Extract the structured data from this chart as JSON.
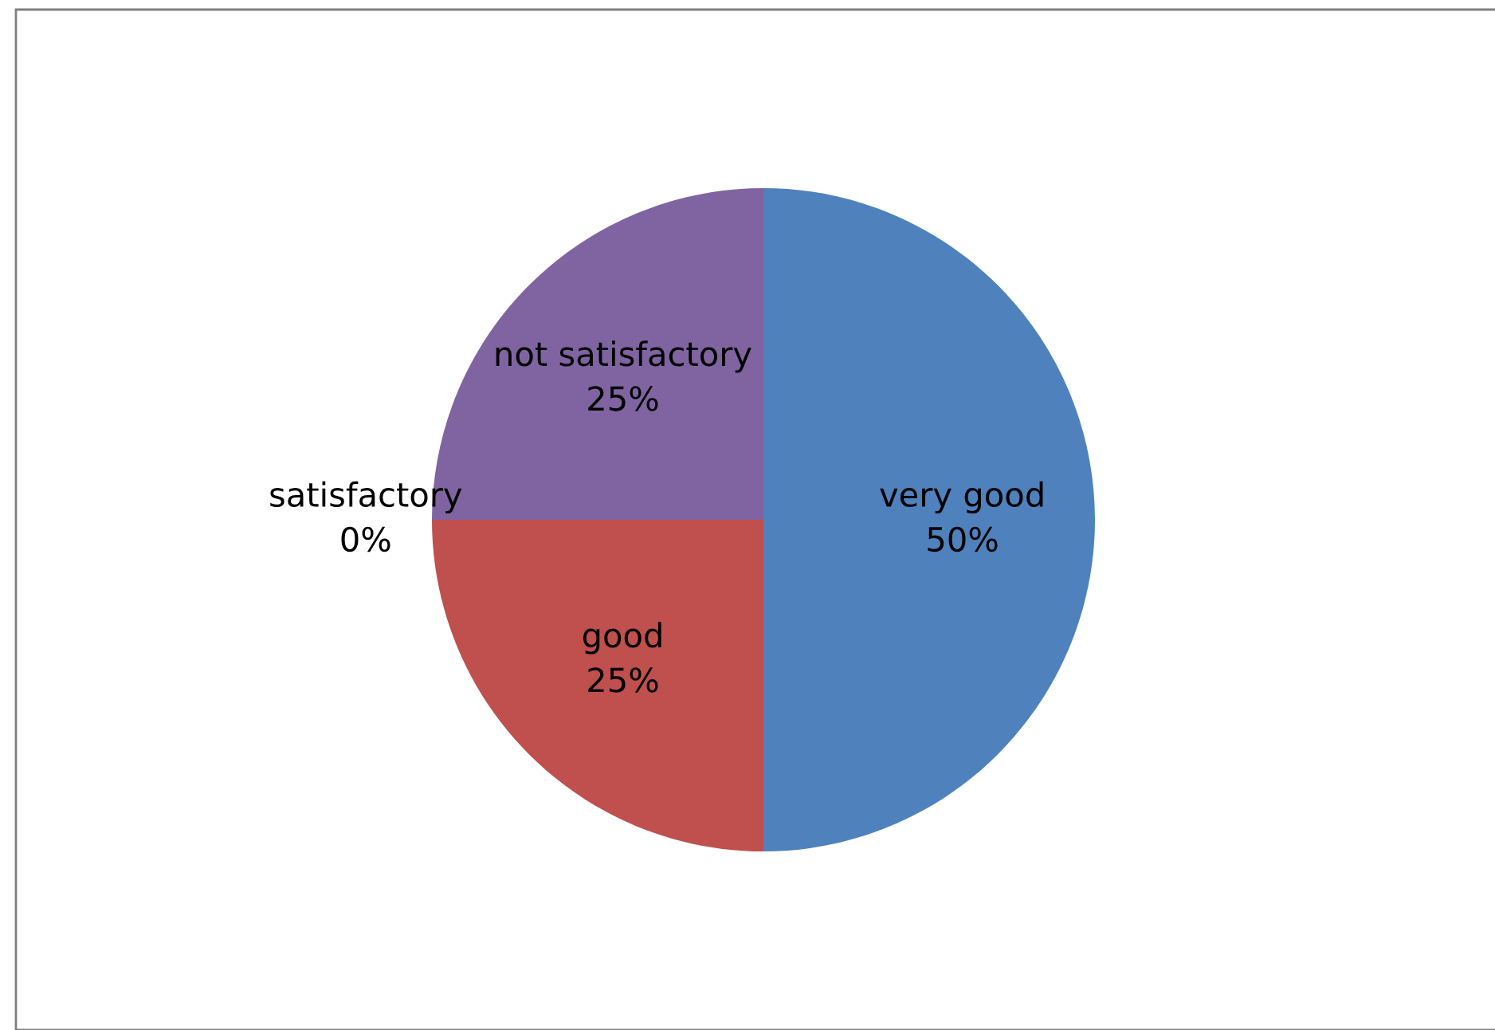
{
  "chart_data": {
    "type": "pie",
    "categories": [
      "very good",
      "good",
      "satisfactory",
      "not satisfactory"
    ],
    "values": [
      50,
      25,
      0,
      25
    ],
    "value_labels": [
      "50%",
      "25%",
      "0%",
      "25%"
    ],
    "colors": [
      "#4f81bd",
      "#c0504d",
      "#9bbb59",
      "#8064a2"
    ],
    "legend": false
  }
}
